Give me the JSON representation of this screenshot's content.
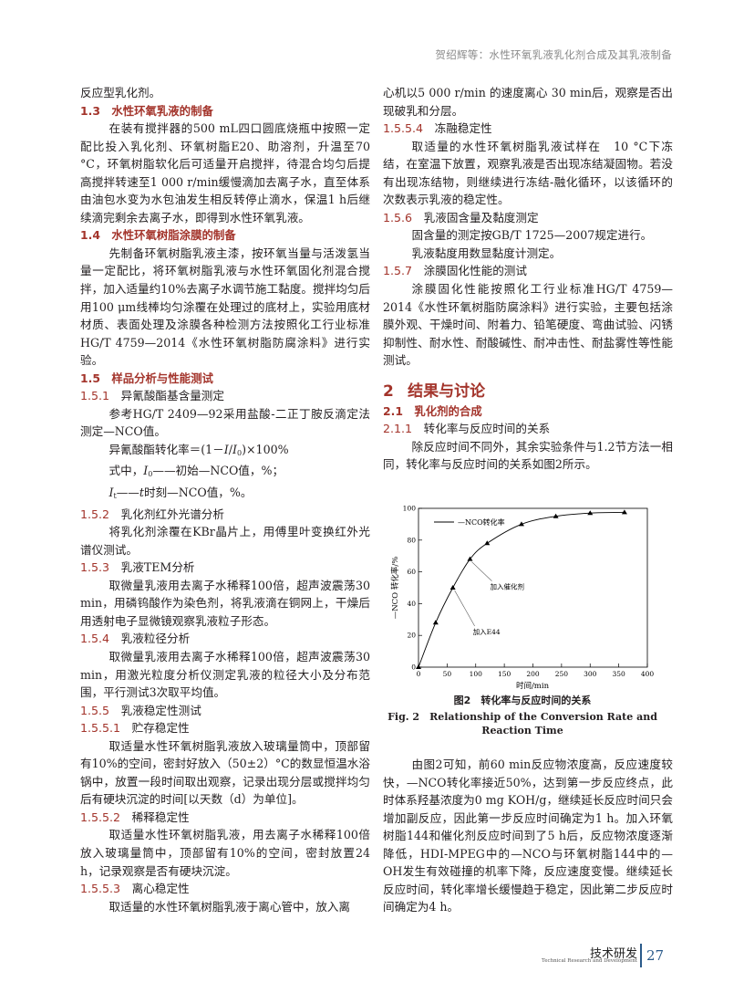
{
  "header": {
    "running_title": "贺绍辉等：水性环氧乳液乳化剂合成及其乳液制备"
  },
  "left": {
    "p0": "反应型乳化剂。",
    "s13": {
      "num": "1.3",
      "title": "水性环氧乳液的制备"
    },
    "p13": "在装有搅拌器的500 mL四口圆底烧瓶中按照一定配比投入乳化剂、环氧树脂E20、助溶剂，升温至70 °C，环氧树脂软化后可适量开启搅拌，待混合均匀后提高搅拌转速至1 000 r/min缓慢滴加去离子水，直至体系由油包水变为水包油发生相反转停止滴水，保温1 h后继续滴完剩余去离子水，即得到水性环氧乳液。",
    "s14": {
      "num": "1.4",
      "title": "水性环氧树脂涂膜的制备"
    },
    "p14": "先制备环氧树脂乳液主漆，按环氧当量与活泼氢当量一定配比，将环氧树脂乳液与水性环氧固化剂混合搅拌，加入适量约10%去离子水调节施工黏度。搅拌均匀后用100 μm线棒均匀涂覆在处理过的底材上，实验用底材材质、表面处理及涂膜各种检测方法按照化工行业标准HG/T 4759—2014《水性环氧树脂防腐涂料》进行实验。",
    "s15": {
      "num": "1.5",
      "title": "样品分析与性能测试"
    },
    "s151": {
      "num": "1.5.1",
      "title": "异氰酸酯基含量测定"
    },
    "p151": "参考HG/T 2409—92采用盐酸-二正丁胺反滴定法测定—NCO值。",
    "formula": {
      "lhs": "异氰酸酯转化率＝(1－",
      "I1": "I",
      "slash": "/",
      "I0": "I",
      "sub0": "0",
      "rhs": ")×100%"
    },
    "where1": {
      "prefix": "式中，",
      "I": "I",
      "sub": "0",
      "text": "——初始—NCO值，%；"
    },
    "where2": {
      "I": "I",
      "sub": "t",
      "dash": "——",
      "t": "t",
      "text": "时刻—NCO值，%。"
    },
    "s152": {
      "num": "1.5.2",
      "title": "乳化剂红外光谱分析"
    },
    "p152": "将乳化剂涂覆在KBr晶片上，用傅里叶变换红外光谱仪测试。",
    "s153": {
      "num": "1.5.3",
      "title": "乳液TEM分析"
    },
    "p153": "取微量乳液用去离子水稀释100倍，超声波震荡30 min，用磷钨酸作为染色剂，将乳液滴在铜网上，干燥后用透射电子显微镜观察乳液粒子形态。",
    "s154": {
      "num": "1.5.4",
      "title": "乳液粒径分析"
    },
    "p154": "取微量乳液用去离子水稀释100倍，超声波震荡30 min，用激光粒度分析仪测定乳液的粒径大小及分布范围，平行测试3次取平均值。",
    "s155": {
      "num": "1.5.5",
      "title": "乳液稳定性测试"
    },
    "s1551": {
      "num": "1.5.5.1",
      "title": "贮存稳定性"
    },
    "p1551": "取适量水性环氧树脂乳液放入玻璃量筒中，顶部留有10%的空间，密封好放入（50±2）°C的数显恒温水浴锅中，放置一段时间取出观察，记录出现分层或搅拌均匀后有硬块沉淀的时间[以天数（d）为单位]。",
    "s1552": {
      "num": "1.5.5.2",
      "title": "稀释稳定性"
    },
    "p1552": "取适量水性环氧树脂乳液，用去离子水稀释100倍放入玻璃量筒中，顶部留有10%的空间，密封放置24 h，记录观察是否有硬块沉淀。",
    "s1553": {
      "num": "1.5.5.3",
      "title": "离心稳定性"
    },
    "p1553": "取适量的水性环氧树脂乳液于离心管中，放入离"
  },
  "right": {
    "p1553c": "心机以5 000 r/min 的速度离心 30 min后，观察是否出现破乳和分层。",
    "s1554": {
      "num": "1.5.5.4",
      "title": "冻融稳定性"
    },
    "p1554": "取适量的水性环氧树脂乳液试样在　10 °C下冻结，在室温下放置，观察乳液是否出现冻结凝固物。若没有出现冻结物，则继续进行冻结-融化循环，以该循环的次数表示乳液的稳定性。",
    "s156": {
      "num": "1.5.6",
      "title": "乳液固含量及黏度测定"
    },
    "p156a": "固含量的测定按GB/T 1725—2007规定进行。",
    "p156b": "乳液黏度用数显黏度计测定。",
    "s157": {
      "num": "1.5.7",
      "title": "涂膜固化性能的测试"
    },
    "p157": "涂膜固化性能按照化工行业标准HG/T 4759—2014《水性环氧树脂防腐涂料》进行实验，主要包括涂膜外观、干燥时间、附着力、铅笔硬度、弯曲试验、闪锈抑制性、耐水性、耐酸碱性、耐冲击性、耐盐雾性等性能测试。",
    "s2": {
      "num": "2",
      "title": "结果与讨论"
    },
    "s21": {
      "num": "2.1",
      "title": "乳化剂的合成"
    },
    "s211": {
      "num": "2.1.1",
      "title": "转化率与反应时间的关系"
    },
    "p211": "除反应时间不同外，其余实验条件与1.2节方法一相同，转化率与反应时间的关系如图2所示。",
    "p_discussion": "由图2可知，前60 min反应物浓度高，反应速度较快，—NCO转化率接近50%，达到第一步反应终点，此时体系羟基浓度为0 mg KOH/g，继续延长反应时间只会增加副反应，因此第一步反应时间确定为1 h。加入环氧树脂144和催化剂反应时间到了5 h后，反应物浓度逐渐降低，HDI-MPEG中的—NCO与环氧树脂144中的—OH发生有效碰撞的机率下降，反应速度变慢。继续延长反应时间，转化率增长缓慢趋于稳定，因此第二步反应时间确定为4 h。"
  },
  "figure": {
    "caption_cn": "图2　转化率与反应时间的关系",
    "caption_en_1": "Fig. 2　Relationship of the Conversion Rate and",
    "caption_en_2": "Reaction Time"
  },
  "chart_data": {
    "type": "line",
    "xlabel": "时间/min",
    "ylabel": "—NCO 转化率/%",
    "xlim": [
      0,
      400
    ],
    "ylim": [
      0,
      100
    ],
    "xticks": [
      "0",
      "50",
      "100",
      "150",
      "200",
      "250",
      "300",
      "350",
      "400"
    ],
    "yticks": [
      "0",
      "20",
      "40",
      "60",
      "80",
      "100"
    ],
    "grid": false,
    "legend_position": "top-left",
    "series": [
      {
        "name": "—NCO转化率",
        "marker": "triangle",
        "color": "#000000",
        "x": [
          0,
          30,
          60,
          90,
          120,
          180,
          240,
          300,
          360
        ],
        "y": [
          0,
          28,
          50,
          68,
          78,
          90,
          95,
          97,
          97.5
        ]
      }
    ],
    "annotations": [
      {
        "text": "加入E44",
        "x": 60,
        "y": 50
      },
      {
        "text": "加入催化剂",
        "x": 90,
        "y": 68
      }
    ]
  },
  "footer": {
    "journal_cn": "技术研发",
    "journal_en": "Technical Research and Development",
    "page": "27"
  }
}
